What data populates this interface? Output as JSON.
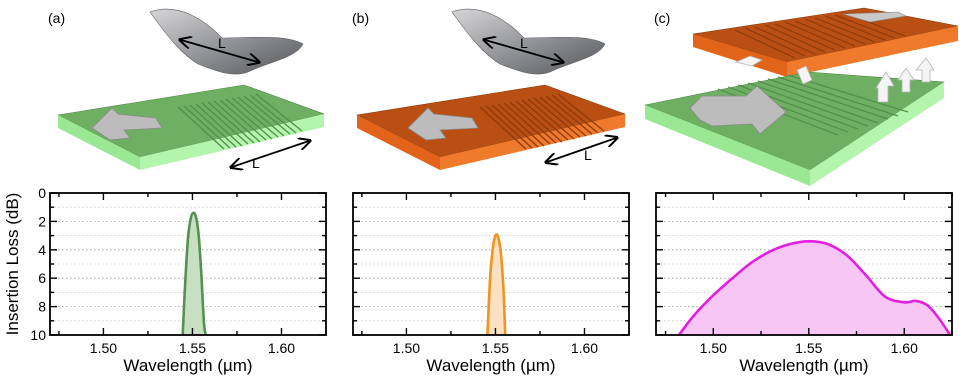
{
  "panels": [
    {
      "letter": "(a)",
      "length_label": "L",
      "grating_color": "#86e37f",
      "color_name": "green"
    },
    {
      "letter": "(b)",
      "length_label": "L",
      "grating_color": "#e2631a",
      "color_name": "orange"
    },
    {
      "letter": "(c)",
      "color_name": "green+orange (stacked)"
    }
  ],
  "chart_data": [
    {
      "type": "area",
      "panel": "(a)",
      "xlabel": "Wavelength (µm)",
      "ylabel": "Insertion Loss (dB)",
      "xlim": [
        1.47,
        1.625
      ],
      "ylim": [
        10,
        0
      ],
      "y_inverted": true,
      "x_ticks": [
        1.5,
        1.55,
        1.6
      ],
      "x_tick_labels": [
        "1.50",
        "1.55",
        "1.60"
      ],
      "y_ticks": [
        0,
        2,
        4,
        6,
        8,
        10
      ],
      "y_tick_labels": [
        "0",
        "2",
        "4",
        "6",
        "8",
        "10"
      ],
      "grid": "horizontal dotted",
      "series": [
        {
          "color": "#55914f",
          "fill": "#c7e0c3",
          "x": [
            1.5445,
            1.546,
            1.5475,
            1.549,
            1.5505,
            1.552,
            1.5535,
            1.555,
            1.5565,
            1.5575
          ],
          "y": [
            10,
            6.2,
            3.2,
            1.8,
            1.4,
            1.7,
            3.0,
            5.8,
            9.2,
            10
          ]
        }
      ]
    },
    {
      "type": "area",
      "panel": "(b)",
      "xlabel": "Wavelength (µm)",
      "ylabel": "",
      "xlim": [
        1.47,
        1.625
      ],
      "ylim": [
        10,
        0
      ],
      "y_inverted": true,
      "x_ticks": [
        1.5,
        1.55,
        1.6
      ],
      "x_tick_labels": [
        "1.50",
        "1.55",
        "1.60"
      ],
      "y_ticks": [
        0,
        2,
        4,
        6,
        8,
        10
      ],
      "y_tick_labels": [],
      "grid": "horizontal dotted",
      "series": [
        {
          "color": "#f0941e",
          "fill": "#fbe0c4",
          "x": [
            1.5455,
            1.547,
            1.5485,
            1.55,
            1.5515,
            1.553,
            1.5545,
            1.5555
          ],
          "y": [
            10,
            6.0,
            3.9,
            3.0,
            3.1,
            4.2,
            6.8,
            10
          ]
        }
      ]
    },
    {
      "type": "area",
      "panel": "(c)",
      "xlabel": "Wavelength (µm)",
      "ylabel": "",
      "xlim": [
        1.47,
        1.625
      ],
      "ylim": [
        10,
        0
      ],
      "y_inverted": true,
      "x_ticks": [
        1.5,
        1.55,
        1.6
      ],
      "x_tick_labels": [
        "1.50",
        "1.55",
        "1.60"
      ],
      "y_ticks": [
        0,
        2,
        4,
        6,
        8,
        10
      ],
      "y_tick_labels": [],
      "grid": "horizontal dotted",
      "series": [
        {
          "color": "#e41fe2",
          "fill": "#f7c6f4",
          "x": [
            1.482,
            1.49,
            1.5,
            1.51,
            1.52,
            1.53,
            1.54,
            1.55,
            1.56,
            1.57,
            1.58,
            1.59,
            1.6,
            1.606,
            1.612,
            1.618,
            1.624
          ],
          "y": [
            10,
            8.6,
            7.2,
            6.0,
            4.9,
            4.1,
            3.6,
            3.4,
            3.6,
            4.4,
            5.8,
            7.3,
            7.7,
            7.6,
            7.9,
            8.8,
            10
          ]
        }
      ]
    }
  ]
}
